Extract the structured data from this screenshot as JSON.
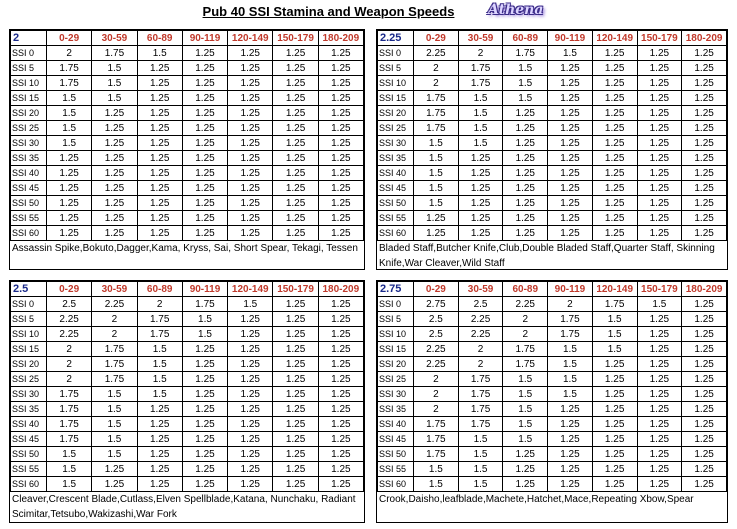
{
  "title": "Pub 40 SSI Stamina and Weapon Speeds",
  "logo_text": "Athena",
  "columns": [
    "0-29",
    "30-59",
    "60-89",
    "90-119",
    "120-149",
    "150-179",
    "180-209"
  ],
  "ssi_labels": [
    "SSI 0",
    "SSI 5",
    "SSI 10",
    "SSI 15",
    "SSI 20",
    "SSI 25",
    "SSI 30",
    "SSI 35",
    "SSI 40",
    "SSI 45",
    "SSI 50",
    "SSI 55",
    "SSI 60"
  ],
  "tables": [
    {
      "speed": "2",
      "rows": [
        [
          "2",
          "1.75",
          "1.5",
          "1.25",
          "1.25",
          "1.25",
          "1.25"
        ],
        [
          "1.75",
          "1.5",
          "1.25",
          "1.25",
          "1.25",
          "1.25",
          "1.25"
        ],
        [
          "1.75",
          "1.5",
          "1.25",
          "1.25",
          "1.25",
          "1.25",
          "1.25"
        ],
        [
          "1.5",
          "1.5",
          "1.25",
          "1.25",
          "1.25",
          "1.25",
          "1.25"
        ],
        [
          "1.5",
          "1.25",
          "1.25",
          "1.25",
          "1.25",
          "1.25",
          "1.25"
        ],
        [
          "1.5",
          "1.25",
          "1.25",
          "1.25",
          "1.25",
          "1.25",
          "1.25"
        ],
        [
          "1.5",
          "1.25",
          "1.25",
          "1.25",
          "1.25",
          "1.25",
          "1.25"
        ],
        [
          "1.25",
          "1.25",
          "1.25",
          "1.25",
          "1.25",
          "1.25",
          "1.25"
        ],
        [
          "1.25",
          "1.25",
          "1.25",
          "1.25",
          "1.25",
          "1.25",
          "1.25"
        ],
        [
          "1.25",
          "1.25",
          "1.25",
          "1.25",
          "1.25",
          "1.25",
          "1.25"
        ],
        [
          "1.25",
          "1.25",
          "1.25",
          "1.25",
          "1.25",
          "1.25",
          "1.25"
        ],
        [
          "1.25",
          "1.25",
          "1.25",
          "1.25",
          "1.25",
          "1.25",
          "1.25"
        ],
        [
          "1.25",
          "1.25",
          "1.25",
          "1.25",
          "1.25",
          "1.25",
          "1.25"
        ]
      ],
      "weapons": "Assassin Spike,Bokuto,Dagger,Kama, Kryss, Sai, Short Spear, Tekagi, Tessen"
    },
    {
      "speed": "2.25",
      "rows": [
        [
          "2.25",
          "2",
          "1.75",
          "1.5",
          "1.25",
          "1.25",
          "1.25"
        ],
        [
          "2",
          "1.75",
          "1.5",
          "1.25",
          "1.25",
          "1.25",
          "1.25"
        ],
        [
          "2",
          "1.75",
          "1.5",
          "1.25",
          "1.25",
          "1.25",
          "1.25"
        ],
        [
          "1.75",
          "1.5",
          "1.5",
          "1.25",
          "1.25",
          "1.25",
          "1.25"
        ],
        [
          "1.75",
          "1.5",
          "1.25",
          "1.25",
          "1.25",
          "1.25",
          "1.25"
        ],
        [
          "1.75",
          "1.5",
          "1.25",
          "1.25",
          "1.25",
          "1.25",
          "1.25"
        ],
        [
          "1.5",
          "1.5",
          "1.25",
          "1.25",
          "1.25",
          "1.25",
          "1.25"
        ],
        [
          "1.5",
          "1.25",
          "1.25",
          "1.25",
          "1.25",
          "1.25",
          "1.25"
        ],
        [
          "1.5",
          "1.25",
          "1.25",
          "1.25",
          "1.25",
          "1.25",
          "1.25"
        ],
        [
          "1.5",
          "1.25",
          "1.25",
          "1.25",
          "1.25",
          "1.25",
          "1.25"
        ],
        [
          "1.5",
          "1.25",
          "1.25",
          "1.25",
          "1.25",
          "1.25",
          "1.25"
        ],
        [
          "1.25",
          "1.25",
          "1.25",
          "1.25",
          "1.25",
          "1.25",
          "1.25"
        ],
        [
          "1.25",
          "1.25",
          "1.25",
          "1.25",
          "1.25",
          "1.25",
          "1.25"
        ]
      ],
      "weapons": "Bladed Staff,Butcher Knife,Club,Double Bladed Staff,Quarter Staff, Skinning Knife,War Cleaver,Wild Staff"
    },
    {
      "speed": "2.5",
      "rows": [
        [
          "2.5",
          "2.25",
          "2",
          "1.75",
          "1.5",
          "1.25",
          "1.25"
        ],
        [
          "2.25",
          "2",
          "1.75",
          "1.5",
          "1.25",
          "1.25",
          "1.25"
        ],
        [
          "2.25",
          "2",
          "1.75",
          "1.5",
          "1.25",
          "1.25",
          "1.25"
        ],
        [
          "2",
          "1.75",
          "1.5",
          "1.25",
          "1.25",
          "1.25",
          "1.25"
        ],
        [
          "2",
          "1.75",
          "1.5",
          "1.25",
          "1.25",
          "1.25",
          "1.25"
        ],
        [
          "2",
          "1.75",
          "1.5",
          "1.25",
          "1.25",
          "1.25",
          "1.25"
        ],
        [
          "1.75",
          "1.5",
          "1.5",
          "1.25",
          "1.25",
          "1.25",
          "1.25"
        ],
        [
          "1.75",
          "1.5",
          "1.25",
          "1.25",
          "1.25",
          "1.25",
          "1.25"
        ],
        [
          "1.75",
          "1.5",
          "1.25",
          "1.25",
          "1.25",
          "1.25",
          "1.25"
        ],
        [
          "1.75",
          "1.5",
          "1.25",
          "1.25",
          "1.25",
          "1.25",
          "1.25"
        ],
        [
          "1.5",
          "1.5",
          "1.25",
          "1.25",
          "1.25",
          "1.25",
          "1.25"
        ],
        [
          "1.5",
          "1.25",
          "1.25",
          "1.25",
          "1.25",
          "1.25",
          "1.25"
        ],
        [
          "1.5",
          "1.25",
          "1.25",
          "1.25",
          "1.25",
          "1.25",
          "1.25"
        ]
      ],
      "weapons": "Cleaver,Crescent Blade,Cutlass,Elven Spellblade,Katana, Nunchaku, Radiant Scimitar,Tetsubo,Wakizashi,War Fork"
    },
    {
      "speed": "2.75",
      "rows": [
        [
          "2.75",
          "2.5",
          "2.25",
          "2",
          "1.75",
          "1.5",
          "1.25"
        ],
        [
          "2.5",
          "2.25",
          "2",
          "1.75",
          "1.5",
          "1.25",
          "1.25"
        ],
        [
          "2.5",
          "2.25",
          "2",
          "1.75",
          "1.5",
          "1.25",
          "1.25"
        ],
        [
          "2.25",
          "2",
          "1.75",
          "1.5",
          "1.5",
          "1.25",
          "1.25"
        ],
        [
          "2.25",
          "2",
          "1.75",
          "1.5",
          "1.25",
          "1.25",
          "1.25"
        ],
        [
          "2",
          "1.75",
          "1.5",
          "1.5",
          "1.25",
          "1.25",
          "1.25"
        ],
        [
          "2",
          "1.75",
          "1.5",
          "1.5",
          "1.25",
          "1.25",
          "1.25"
        ],
        [
          "2",
          "1.75",
          "1.5",
          "1.25",
          "1.25",
          "1.25",
          "1.25"
        ],
        [
          "1.75",
          "1.75",
          "1.5",
          "1.25",
          "1.25",
          "1.25",
          "1.25"
        ],
        [
          "1.75",
          "1.5",
          "1.5",
          "1.25",
          "1.25",
          "1.25",
          "1.25"
        ],
        [
          "1.75",
          "1.5",
          "1.25",
          "1.25",
          "1.25",
          "1.25",
          "1.25"
        ],
        [
          "1.5",
          "1.5",
          "1.25",
          "1.25",
          "1.25",
          "1.25",
          "1.25"
        ],
        [
          "1.5",
          "1.5",
          "1.25",
          "1.25",
          "1.25",
          "1.25",
          "1.25"
        ]
      ],
      "weapons": "Crook,Daisho,leafblade,Machete,Hatchet,Mace,Repeating Xbow,Spear"
    }
  ]
}
